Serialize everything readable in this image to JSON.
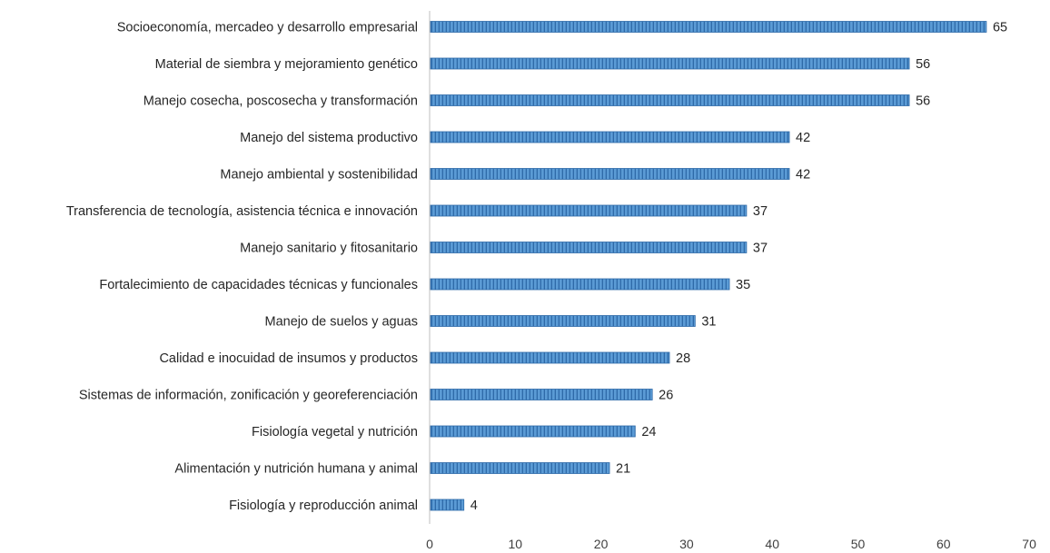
{
  "chart_data": {
    "type": "bar",
    "orientation": "horizontal",
    "title": "",
    "xlabel": "",
    "ylabel": "",
    "xlim": [
      0,
      70
    ],
    "x_ticks": [
      0,
      10,
      20,
      30,
      40,
      50,
      60,
      70
    ],
    "grid": false,
    "legend": "none",
    "bar_color": "#5b9bd5",
    "bar_pattern": "vertical-stripes",
    "categories": [
      "Socioeconomía, mercadeo y desarrollo empresarial",
      "Material de siembra y mejoramiento genético",
      "Manejo cosecha, poscosecha y transformación",
      "Manejo del sistema productivo",
      "Manejo ambiental y sostenibilidad",
      "Transferencia de tecnología, asistencia técnica e innovación",
      "Manejo sanitario y fitosanitario",
      "Fortalecimiento de capacidades técnicas y funcionales",
      "Manejo de suelos y aguas",
      "Calidad e inocuidad de insumos y productos",
      "Sistemas de información, zonificación y georeferenciación",
      "Fisiología vegetal y nutrición",
      "Alimentación y nutrición humana y animal",
      "Fisiología y reproducción animal"
    ],
    "values": [
      65,
      56,
      56,
      42,
      42,
      37,
      37,
      35,
      31,
      28,
      26,
      24,
      21,
      4
    ]
  }
}
